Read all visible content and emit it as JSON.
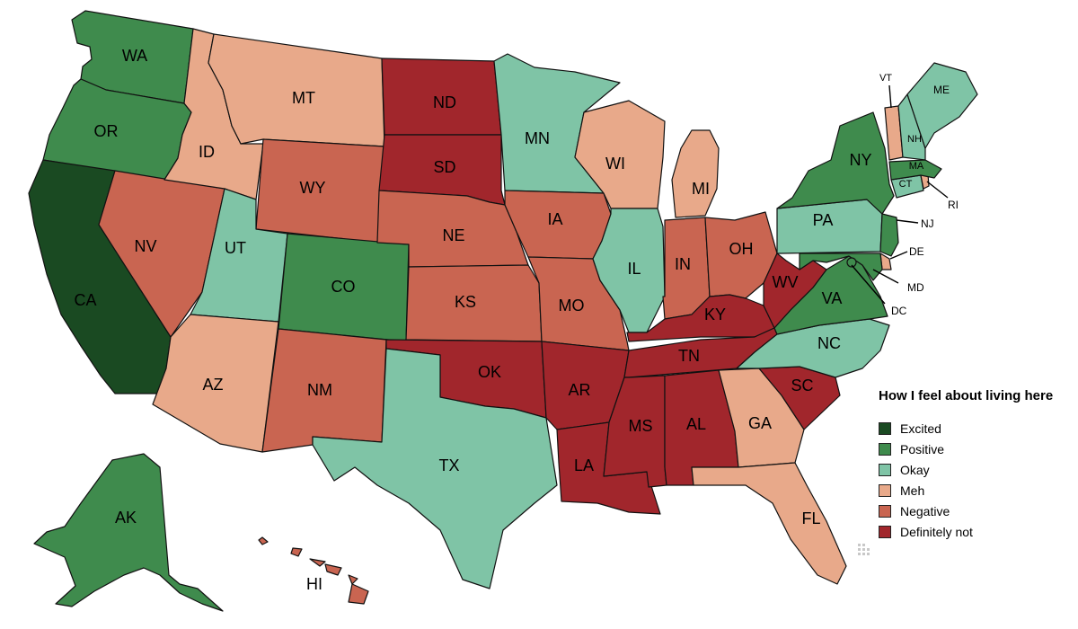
{
  "legend": {
    "title": "How I feel about living here",
    "items": [
      {
        "key": "excited",
        "label": "Excited",
        "color": "#1a4a22"
      },
      {
        "key": "positive",
        "label": "Positive",
        "color": "#3f8b4d"
      },
      {
        "key": "okay",
        "label": "Okay",
        "color": "#7fc4a6"
      },
      {
        "key": "meh",
        "label": "Meh",
        "color": "#e8a98a"
      },
      {
        "key": "negative",
        "label": "Negative",
        "color": "#c96551"
      },
      {
        "key": "not",
        "label": "Definitely not",
        "color": "#a1262c"
      }
    ]
  },
  "states": {
    "WA": {
      "label": "WA",
      "rating": "positive"
    },
    "OR": {
      "label": "OR",
      "rating": "positive"
    },
    "CA": {
      "label": "CA",
      "rating": "excited"
    },
    "NV": {
      "label": "NV",
      "rating": "negative"
    },
    "ID": {
      "label": "ID",
      "rating": "meh"
    },
    "MT": {
      "label": "MT",
      "rating": "meh"
    },
    "WY": {
      "label": "WY",
      "rating": "negative"
    },
    "UT": {
      "label": "UT",
      "rating": "okay"
    },
    "CO": {
      "label": "CO",
      "rating": "positive"
    },
    "AZ": {
      "label": "AZ",
      "rating": "meh"
    },
    "NM": {
      "label": "NM",
      "rating": "negative"
    },
    "ND": {
      "label": "ND",
      "rating": "not"
    },
    "SD": {
      "label": "SD",
      "rating": "not"
    },
    "NE": {
      "label": "NE",
      "rating": "negative"
    },
    "KS": {
      "label": "KS",
      "rating": "negative"
    },
    "OK": {
      "label": "OK",
      "rating": "not"
    },
    "TX": {
      "label": "TX",
      "rating": "okay"
    },
    "MN": {
      "label": "MN",
      "rating": "okay"
    },
    "IA": {
      "label": "IA",
      "rating": "negative"
    },
    "MO": {
      "label": "MO",
      "rating": "negative"
    },
    "AR": {
      "label": "AR",
      "rating": "not"
    },
    "LA": {
      "label": "LA",
      "rating": "not"
    },
    "WI": {
      "label": "WI",
      "rating": "meh"
    },
    "IL": {
      "label": "IL",
      "rating": "okay"
    },
    "MI": {
      "label": "MI",
      "rating": "meh"
    },
    "IN": {
      "label": "IN",
      "rating": "negative"
    },
    "OH": {
      "label": "OH",
      "rating": "negative"
    },
    "KY": {
      "label": "KY",
      "rating": "not"
    },
    "TN": {
      "label": "TN",
      "rating": "not"
    },
    "MS": {
      "label": "MS",
      "rating": "not"
    },
    "AL": {
      "label": "AL",
      "rating": "not"
    },
    "GA": {
      "label": "GA",
      "rating": "meh"
    },
    "FL": {
      "label": "FL",
      "rating": "meh"
    },
    "SC": {
      "label": "SC",
      "rating": "not"
    },
    "NC": {
      "label": "NC",
      "rating": "okay"
    },
    "VA": {
      "label": "VA",
      "rating": "positive"
    },
    "WV": {
      "label": "WV",
      "rating": "not"
    },
    "PA": {
      "label": "PA",
      "rating": "okay"
    },
    "NY": {
      "label": "NY",
      "rating": "positive"
    },
    "NJ": {
      "label": "NJ",
      "rating": "positive"
    },
    "DE": {
      "label": "DE",
      "rating": "meh"
    },
    "MD": {
      "label": "MD",
      "rating": "positive"
    },
    "DC": {
      "label": "DC",
      "rating": "positive"
    },
    "CT": {
      "label": "CT",
      "rating": "okay"
    },
    "RI": {
      "label": "RI",
      "rating": "meh"
    },
    "MA": {
      "label": "MA",
      "rating": "positive"
    },
    "VT": {
      "label": "VT",
      "rating": "meh"
    },
    "NH": {
      "label": "NH",
      "rating": "okay"
    },
    "ME": {
      "label": "ME",
      "rating": "okay"
    },
    "AK": {
      "label": "AK",
      "rating": "positive"
    },
    "HI": {
      "label": "HI",
      "rating": "negative"
    }
  }
}
